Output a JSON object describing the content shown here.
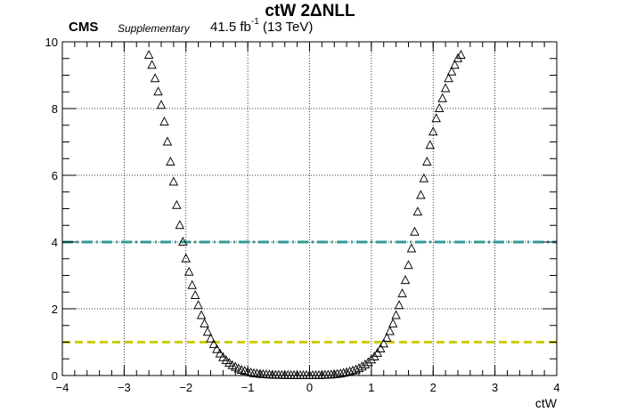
{
  "header": {
    "experiment": "CMS",
    "label": "Supplementary",
    "luminosity": "41.5 fb",
    "lumi_exp": "-1",
    "energy": "(13 TeV)"
  },
  "chart_data": {
    "type": "scatter",
    "title": "ctW 2ΔNLL",
    "xlabel": "ctW",
    "ylabel": "",
    "xlim": [
      -4,
      4
    ],
    "ylim": [
      0,
      10
    ],
    "xticks": [
      "−4",
      "−3",
      "−2",
      "−1",
      "0",
      "1",
      "2",
      "3",
      "4"
    ],
    "yticks": [
      "0",
      "2",
      "4",
      "6",
      "8",
      "10"
    ],
    "grid": true,
    "marker": "open-triangle",
    "series": [
      {
        "x": [
          -2.6,
          -2.55,
          -2.5,
          -2.45,
          -2.4,
          -2.35,
          -2.3,
          -2.25,
          -2.2,
          -2.15,
          -2.1,
          -2.05,
          -2.0,
          -1.95,
          -1.9,
          -1.85,
          -1.8,
          -1.75,
          -1.7,
          -1.65,
          -1.6,
          -1.55,
          -1.5,
          -1.45,
          -1.4,
          -1.35,
          -1.3,
          -1.25,
          -1.2,
          -1.15,
          -1.1,
          -1.05,
          -1.0,
          -0.95,
          -0.9,
          -0.85,
          -0.8,
          -0.75,
          -0.7,
          -0.65,
          -0.6,
          -0.55,
          -0.5,
          -0.45,
          -0.4,
          -0.35,
          -0.3,
          -0.25,
          -0.2,
          -0.15,
          -0.1,
          -0.05,
          0.0,
          0.05,
          0.1,
          0.15,
          0.2,
          0.25,
          0.3,
          0.35,
          0.4,
          0.45,
          0.5,
          0.55,
          0.6,
          0.65,
          0.7,
          0.75,
          0.8,
          0.85,
          0.9,
          0.95,
          1.0,
          1.05,
          1.1,
          1.15,
          1.2,
          1.25,
          1.3,
          1.35,
          1.4,
          1.45,
          1.5,
          1.55,
          1.6,
          1.65,
          1.7,
          1.75,
          1.8,
          1.85,
          1.9,
          1.95,
          2.0,
          2.05,
          2.1,
          2.15,
          2.2,
          2.25,
          2.3,
          2.35,
          2.4,
          2.45
        ],
        "y": [
          9.6,
          9.3,
          8.9,
          8.5,
          8.1,
          7.6,
          7.0,
          6.4,
          5.8,
          5.1,
          4.5,
          4.0,
          3.5,
          3.1,
          2.7,
          2.4,
          2.1,
          1.8,
          1.55,
          1.3,
          1.1,
          0.93,
          0.78,
          0.65,
          0.54,
          0.45,
          0.37,
          0.3,
          0.25,
          0.2,
          0.16,
          0.13,
          0.1,
          0.08,
          0.06,
          0.05,
          0.04,
          0.03,
          0.025,
          0.02,
          0.015,
          0.01,
          0.01,
          0.008,
          0.006,
          0.005,
          0.004,
          0.003,
          0.002,
          0.002,
          0.001,
          0.001,
          0.0,
          0.001,
          0.002,
          0.004,
          0.007,
          0.01,
          0.015,
          0.02,
          0.03,
          0.04,
          0.05,
          0.07,
          0.09,
          0.11,
          0.14,
          0.17,
          0.21,
          0.26,
          0.32,
          0.39,
          0.47,
          0.56,
          0.67,
          0.8,
          0.95,
          1.12,
          1.32,
          1.55,
          1.8,
          2.1,
          2.45,
          2.85,
          3.3,
          3.8,
          4.3,
          4.9,
          5.4,
          5.9,
          6.4,
          6.9,
          7.3,
          7.7,
          8.0,
          8.3,
          8.6,
          8.9,
          9.1,
          9.3,
          9.5,
          9.6
        ]
      }
    ],
    "reference_lines": [
      {
        "y": 1,
        "color": "#cccc00",
        "style": "dashed"
      },
      {
        "y": 4,
        "color": "#339999",
        "style": "dash-dot"
      }
    ]
  }
}
